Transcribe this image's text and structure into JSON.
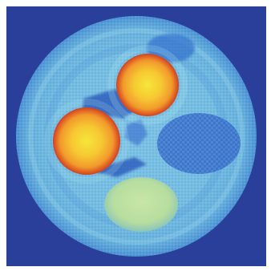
{
  "image": {
    "kind": "false-color cross-sectional scan (phantom) with jet-like colormap",
    "colors": {
      "background": "#2a3f9a",
      "disc_base": "#5ea6dc",
      "disc_light": "#8fd0ea",
      "dark_region": "#2a62c4",
      "hot_center": "#f7d330",
      "hot_mid": "#f2a12a",
      "hot_edge": "#d0401f",
      "bottom_insert": "#bfe0a0"
    },
    "regions": [
      {
        "name": "upper-hot-insert",
        "level": "high"
      },
      {
        "name": "left-hot-insert",
        "level": "high"
      },
      {
        "name": "bottom-insert",
        "level": "medium"
      },
      {
        "name": "right-textured-insert",
        "level": "low"
      },
      {
        "name": "dark-streaks",
        "level": "low"
      }
    ]
  }
}
